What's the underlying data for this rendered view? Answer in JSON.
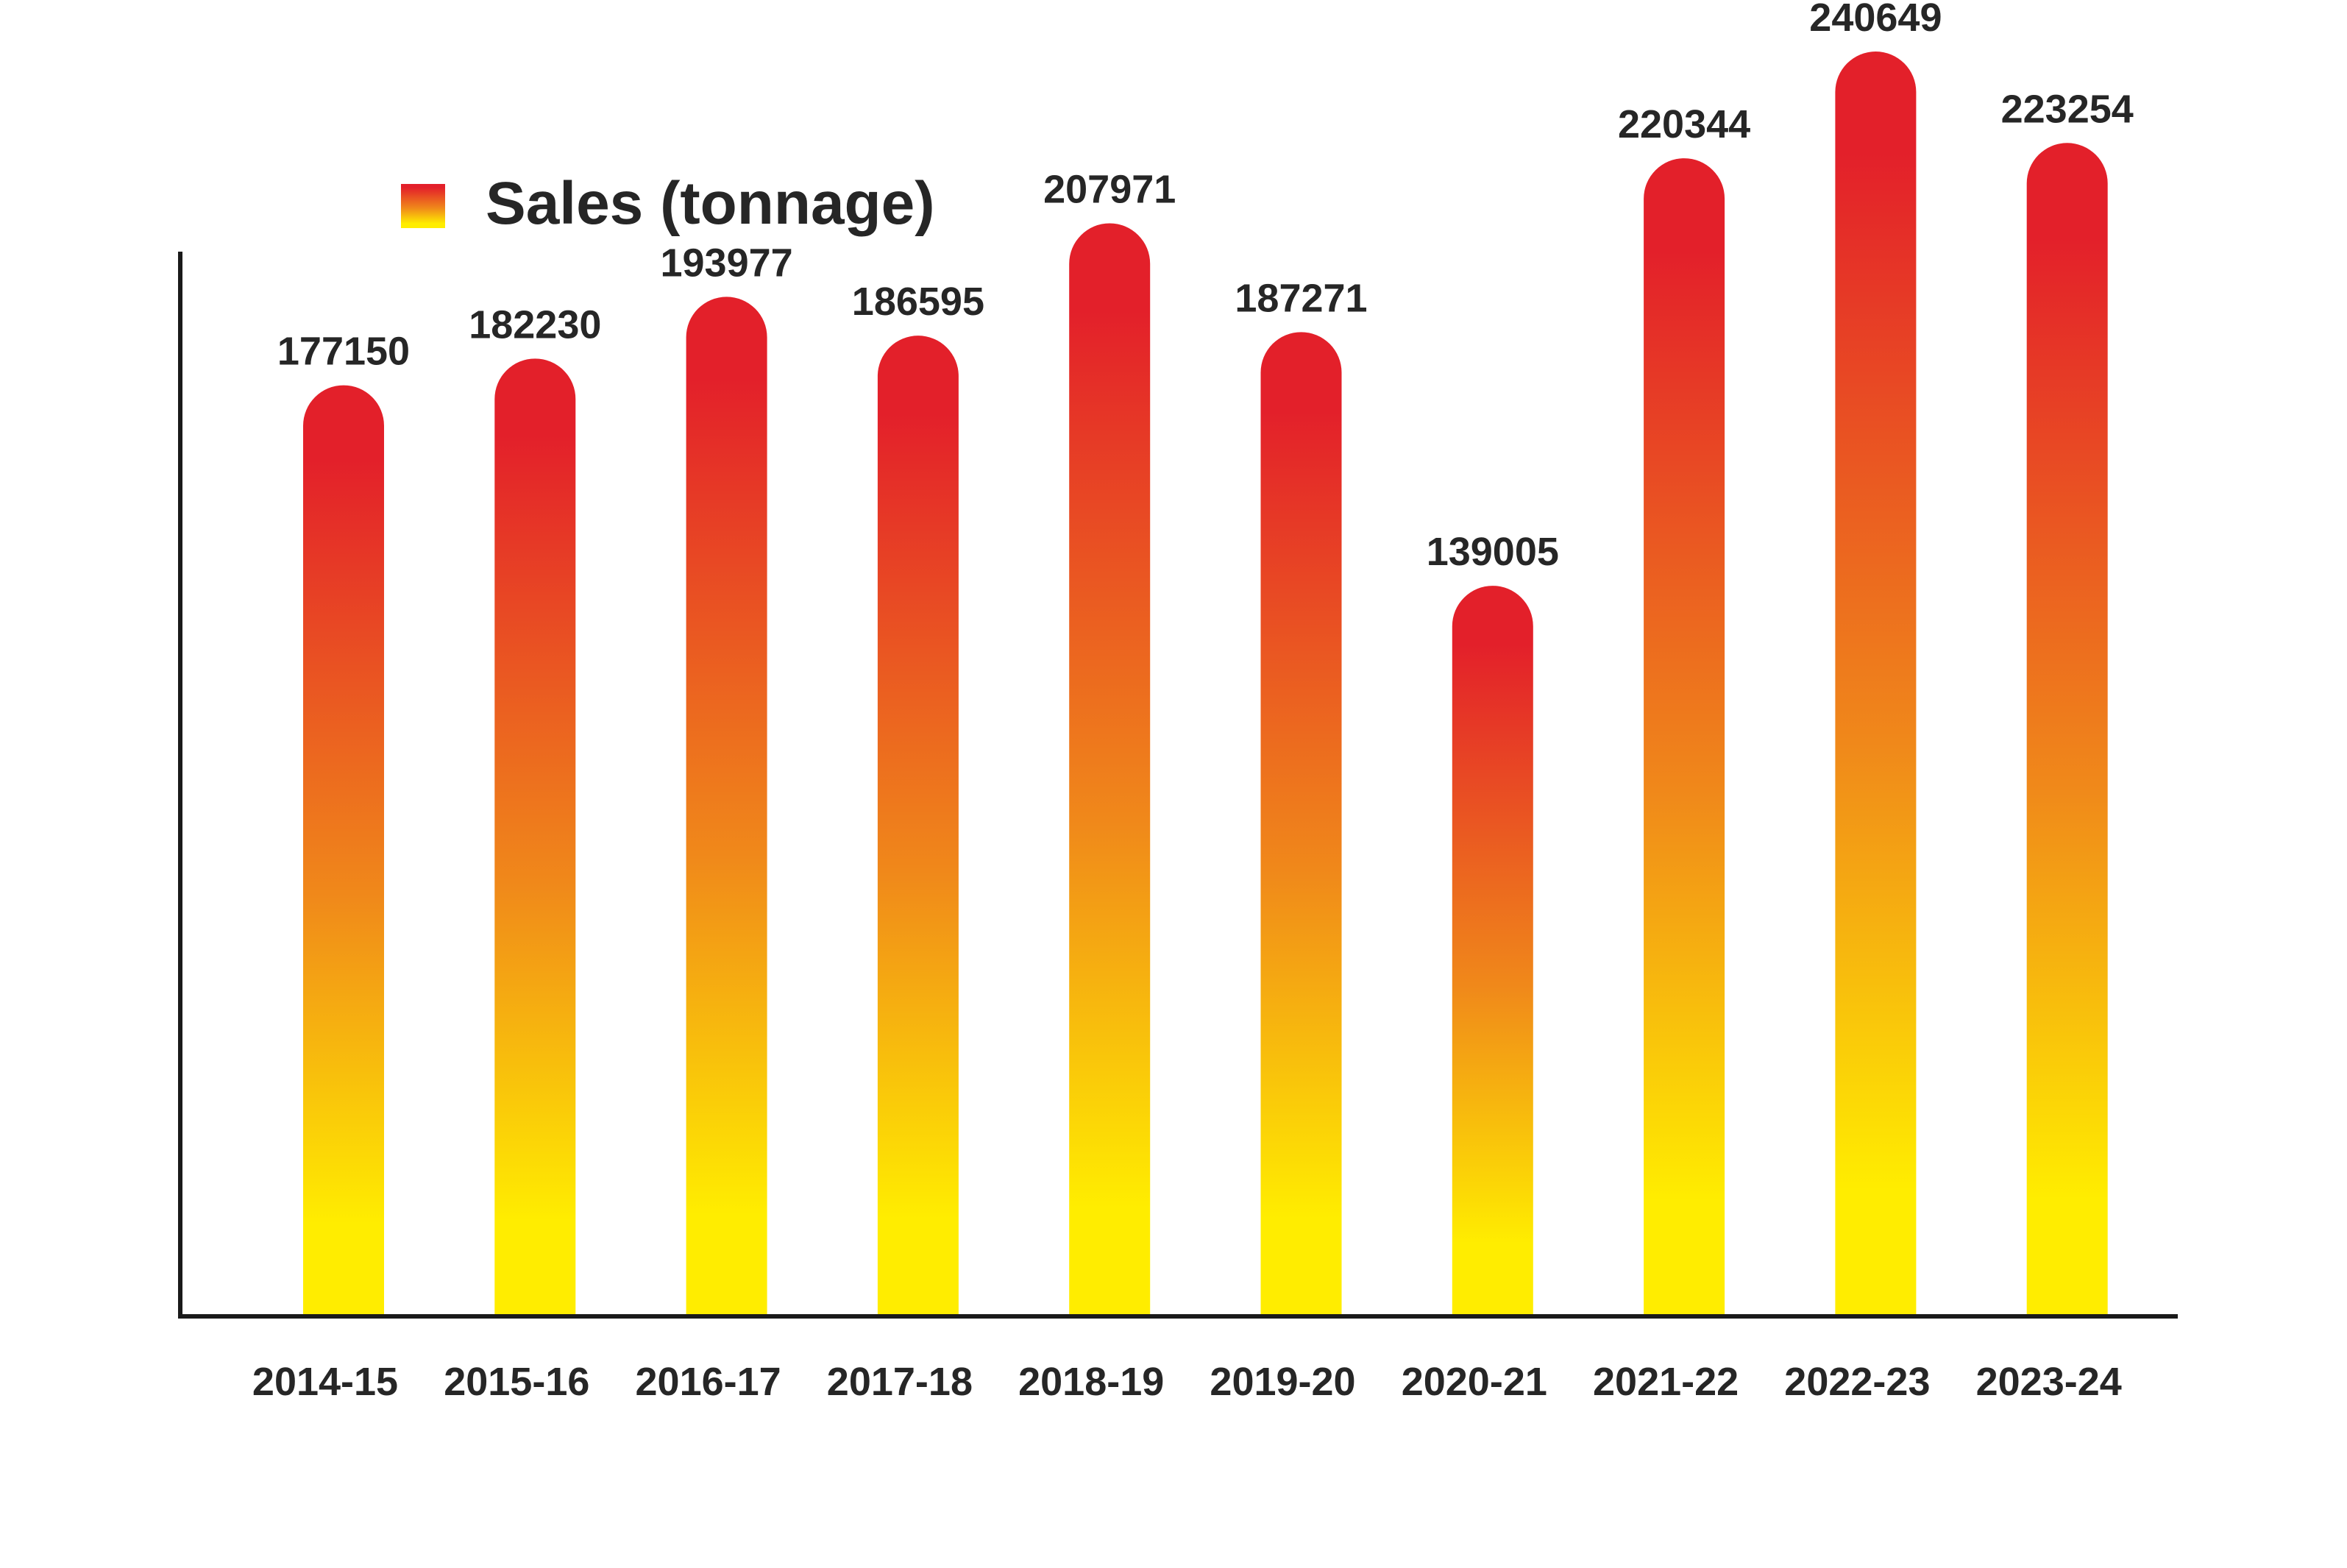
{
  "chart_data": {
    "type": "bar",
    "title": "",
    "xlabel": "",
    "ylabel": "",
    "ylim": [
      0,
      260000
    ],
    "grid": false,
    "legend_position": "top-left",
    "categories": [
      "2014-15",
      "2015-16",
      "2016-17",
      "2017-18",
      "2018-19",
      "2019-20",
      "2020-21",
      "2021-22",
      "2022-23",
      "2023-24"
    ],
    "series": [
      {
        "name": "Sales (tonnage)",
        "values": [
          177150,
          182230,
          193977,
          186595,
          207971,
          187271,
          139005,
          220344,
          240649,
          223254
        ],
        "value_labels": [
          "177150",
          "182230",
          "193977",
          "186595",
          "207971",
          "187271",
          "139005",
          "220344",
          "240649",
          "223254"
        ]
      }
    ]
  },
  "colors": {
    "gradient_top": "#e3202a",
    "gradient_mid": "#f0891a",
    "gradient_bottom": "#ffed00",
    "axis": "#1a1a1a",
    "text": "#262626",
    "background": "#ffffff"
  }
}
